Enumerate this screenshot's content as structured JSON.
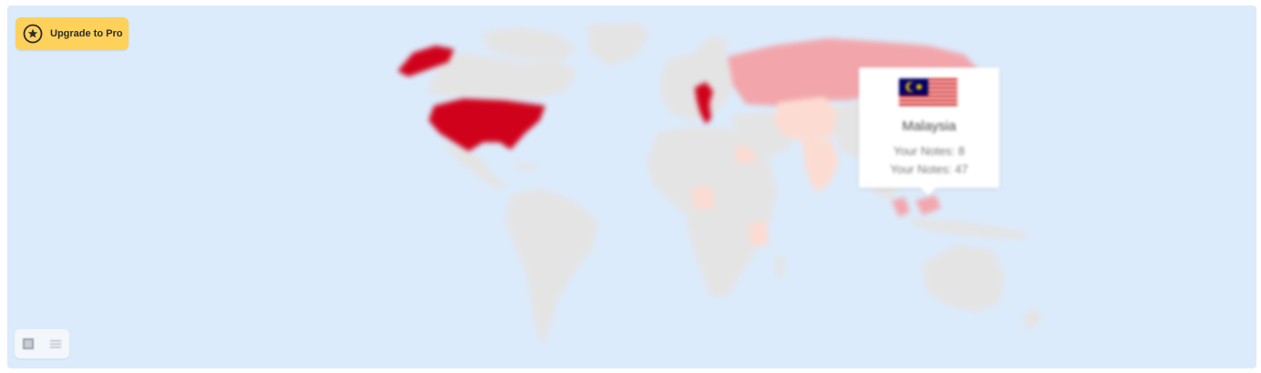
{
  "upgrade": {
    "label": "Upgrade to Pro",
    "icon": "star-icon"
  },
  "colors": {
    "ocean": "#dcebfb",
    "land": "#e4e4e4",
    "high": "#d0021b",
    "medium": "#f2a6ab",
    "low": "#fcdcd2",
    "button": "#fdd15a"
  },
  "tooltip": {
    "country": "Malaysia",
    "line1": "Your Notes: 8",
    "line2": "Your Notes: 47",
    "flag": "malaysia-flag"
  },
  "view_toggle": {
    "map_icon": "map-view-icon",
    "list_icon": "list-view-icon"
  }
}
